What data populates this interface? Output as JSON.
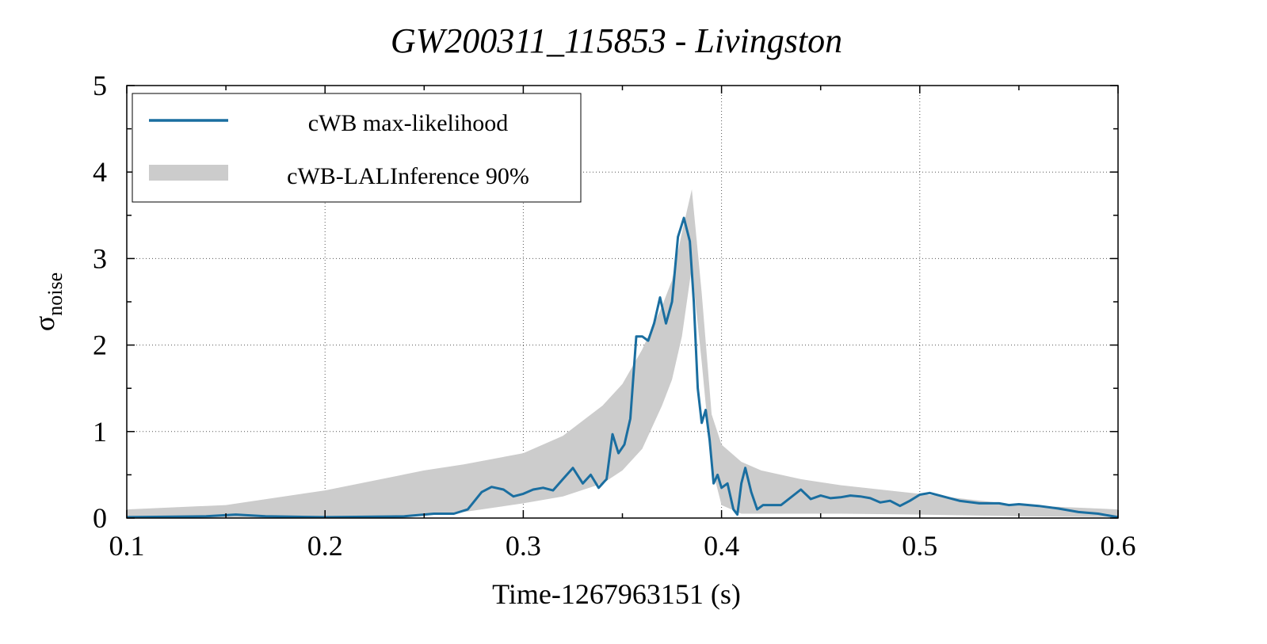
{
  "chart_data": {
    "type": "line",
    "title": "GW200311_115853 - Livingston",
    "xlabel": "Time-1267963151 (s)",
    "ylabel_main": "σ",
    "ylabel_sub": "noise",
    "xlim": [
      0.1,
      0.6
    ],
    "ylim": [
      0,
      5
    ],
    "xticks": [
      0.1,
      0.2,
      0.3,
      0.4,
      0.5,
      0.6
    ],
    "xtick_labels": [
      "0.1",
      "0.2",
      "0.3",
      "0.4",
      "0.5",
      "0.6"
    ],
    "yticks": [
      0,
      1,
      2,
      3,
      4,
      5
    ],
    "ytick_labels": [
      "0",
      "1",
      "2",
      "3",
      "4",
      "5"
    ],
    "grid": true,
    "legend_position": "top-left",
    "colors": {
      "line": "#1a6ea0",
      "band": "#cccccc"
    },
    "series": [
      {
        "name": "cWB max-likelihood",
        "kind": "line",
        "x": [
          0.1,
          0.14,
          0.155,
          0.17,
          0.2,
          0.24,
          0.255,
          0.265,
          0.272,
          0.279,
          0.284,
          0.29,
          0.295,
          0.3,
          0.305,
          0.31,
          0.315,
          0.32,
          0.325,
          0.33,
          0.334,
          0.338,
          0.342,
          0.345,
          0.348,
          0.351,
          0.354,
          0.357,
          0.36,
          0.363,
          0.366,
          0.369,
          0.372,
          0.375,
          0.378,
          0.381,
          0.384,
          0.386,
          0.388,
          0.39,
          0.392,
          0.394,
          0.396,
          0.398,
          0.4,
          0.403,
          0.406,
          0.408,
          0.41,
          0.412,
          0.415,
          0.418,
          0.421,
          0.424,
          0.43,
          0.44,
          0.445,
          0.45,
          0.455,
          0.46,
          0.465,
          0.47,
          0.475,
          0.48,
          0.485,
          0.49,
          0.495,
          0.5,
          0.505,
          0.51,
          0.52,
          0.53,
          0.54,
          0.545,
          0.55,
          0.56,
          0.57,
          0.58,
          0.59,
          0.6
        ],
        "y": [
          0.01,
          0.02,
          0.04,
          0.02,
          0.01,
          0.02,
          0.05,
          0.05,
          0.1,
          0.3,
          0.36,
          0.33,
          0.25,
          0.28,
          0.33,
          0.35,
          0.32,
          0.45,
          0.58,
          0.4,
          0.5,
          0.35,
          0.45,
          0.97,
          0.75,
          0.85,
          1.15,
          2.1,
          2.1,
          2.05,
          2.25,
          2.55,
          2.25,
          2.5,
          3.25,
          3.47,
          3.2,
          2.5,
          1.5,
          1.1,
          1.25,
          0.9,
          0.4,
          0.5,
          0.35,
          0.4,
          0.1,
          0.04,
          0.4,
          0.58,
          0.3,
          0.1,
          0.15,
          0.15,
          0.15,
          0.33,
          0.22,
          0.26,
          0.23,
          0.24,
          0.26,
          0.25,
          0.23,
          0.18,
          0.2,
          0.14,
          0.2,
          0.27,
          0.29,
          0.26,
          0.2,
          0.17,
          0.17,
          0.15,
          0.16,
          0.14,
          0.11,
          0.07,
          0.05,
          0.01
        ]
      },
      {
        "name": "cWB-LALInference 90%",
        "kind": "band",
        "x": [
          0.1,
          0.15,
          0.2,
          0.25,
          0.27,
          0.3,
          0.32,
          0.34,
          0.35,
          0.36,
          0.37,
          0.375,
          0.38,
          0.385,
          0.39,
          0.395,
          0.4,
          0.41,
          0.42,
          0.44,
          0.46,
          0.5,
          0.55,
          0.6
        ],
        "lower": [
          0.0,
          0.0,
          0.01,
          0.04,
          0.07,
          0.17,
          0.25,
          0.4,
          0.55,
          0.8,
          1.3,
          1.6,
          2.1,
          2.9,
          1.8,
          0.6,
          0.15,
          0.05,
          0.05,
          0.05,
          0.05,
          0.04,
          0.02,
          0.01
        ],
        "upper": [
          0.1,
          0.15,
          0.32,
          0.55,
          0.62,
          0.75,
          0.95,
          1.3,
          1.55,
          1.95,
          2.45,
          2.75,
          3.3,
          3.8,
          2.6,
          1.2,
          0.85,
          0.65,
          0.55,
          0.45,
          0.38,
          0.28,
          0.15,
          0.1
        ]
      }
    ]
  }
}
